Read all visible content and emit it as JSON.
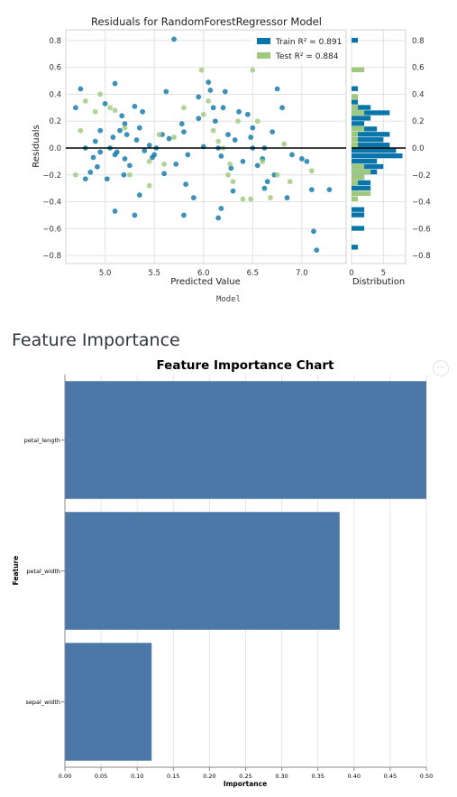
{
  "section_heading": "Feature Importance",
  "model_caption": "Model",
  "menu_icon_glyph": "···",
  "colors": {
    "train": "#0a75a8",
    "test": "#9ec97c",
    "bars": "#4c78a8"
  },
  "chart_data": [
    {
      "type": "scatter",
      "title": "Residuals for RandomForestRegressor Model",
      "xlabel": "Predicted Value",
      "ylabel": "Residuals",
      "xlim": [
        4.6,
        7.45
      ],
      "ylim": [
        -0.86,
        0.88
      ],
      "xticks": [
        "5.0",
        "5.5",
        "6.0",
        "6.5",
        "7.0"
      ],
      "xtick_values": [
        5.0,
        5.5,
        6.0,
        6.5,
        7.0
      ],
      "yticks": [
        "0.8",
        "0.6",
        "0.4",
        "0.2",
        "0.0",
        "−0.2",
        "−0.4",
        "−0.6",
        "−0.8"
      ],
      "ytick_values": [
        0.8,
        0.6,
        0.4,
        0.2,
        0.0,
        -0.2,
        -0.4,
        -0.6,
        -0.8
      ],
      "legend": {
        "placement": "top-right",
        "entries": [
          {
            "series": "Train",
            "label": "Train R² = 0.891"
          },
          {
            "series": "Test",
            "label": "Test R² = 0.884"
          }
        ]
      },
      "series": [
        {
          "name": "Train",
          "points": [
            [
              4.7,
              0.3
            ],
            [
              4.75,
              0.44
            ],
            [
              4.8,
              0.0
            ],
            [
              4.8,
              -0.23
            ],
            [
              4.85,
              -0.18
            ],
            [
              4.88,
              -0.07
            ],
            [
              4.9,
              0.05
            ],
            [
              4.92,
              -0.14
            ],
            [
              4.95,
              -0.03
            ],
            [
              5.0,
              0.33
            ],
            [
              5.02,
              -0.23
            ],
            [
              5.05,
              0.0
            ],
            [
              5.08,
              0.08
            ],
            [
              5.1,
              0.48
            ],
            [
              5.1,
              -0.05
            ],
            [
              5.12,
              -0.03
            ],
            [
              5.15,
              0.13
            ],
            [
              5.17,
              0.24
            ],
            [
              5.19,
              -0.2
            ],
            [
              5.2,
              0.18
            ],
            [
              5.22,
              0.1
            ],
            [
              5.25,
              -0.13
            ],
            [
              5.3,
              0.31
            ],
            [
              5.32,
              0.06
            ],
            [
              5.35,
              -0.35
            ],
            [
              5.38,
              0.27
            ],
            [
              5.4,
              -0.02
            ],
            [
              5.45,
              0.02
            ],
            [
              5.48,
              -0.07
            ],
            [
              5.5,
              -0.05
            ],
            [
              5.52,
              0.0
            ],
            [
              5.58,
              0.1
            ],
            [
              5.6,
              -0.19
            ],
            [
              5.62,
              0.42
            ],
            [
              5.65,
              0.07
            ],
            [
              5.7,
              0.81
            ],
            [
              5.72,
              -0.12
            ],
            [
              5.78,
              0.18
            ],
            [
              5.8,
              0.12
            ],
            [
              5.82,
              -0.27
            ],
            [
              5.84,
              -0.05
            ],
            [
              5.9,
              -0.37
            ],
            [
              5.95,
              0.38
            ],
            [
              6.0,
              0.01
            ],
            [
              6.05,
              0.49
            ],
            [
              6.07,
              0.43
            ],
            [
              6.1,
              0.3
            ],
            [
              6.12,
              0.2
            ],
            [
              6.15,
              0.0
            ],
            [
              6.18,
              -0.06
            ],
            [
              6.2,
              0.3
            ],
            [
              6.22,
              0.42
            ],
            [
              6.25,
              0.1
            ],
            [
              6.28,
              -0.15
            ],
            [
              6.3,
              -0.32
            ],
            [
              6.32,
              0.06
            ],
            [
              6.36,
              0.27
            ],
            [
              6.4,
              -0.1
            ],
            [
              6.45,
              0.25
            ],
            [
              6.48,
              0.08
            ],
            [
              6.5,
              0.0
            ],
            [
              6.55,
              -0.13
            ],
            [
              6.6,
              -0.08
            ],
            [
              6.62,
              -0.3
            ],
            [
              6.65,
              -0.25
            ],
            [
              6.7,
              0.12
            ],
            [
              6.72,
              -0.2
            ],
            [
              6.75,
              0.44
            ],
            [
              6.8,
              0.3
            ],
            [
              6.85,
              -0.37
            ],
            [
              6.9,
              -0.05
            ],
            [
              7.0,
              -0.08
            ],
            [
              7.05,
              -0.1
            ],
            [
              7.1,
              -0.31
            ],
            [
              7.12,
              -0.62
            ],
            [
              7.15,
              -0.76
            ],
            [
              7.28,
              -0.31
            ],
            [
              5.1,
              -0.47
            ],
            [
              5.3,
              -0.5
            ],
            [
              5.8,
              -0.5
            ],
            [
              6.15,
              -0.52
            ],
            [
              6.18,
              -0.45
            ],
            [
              5.2,
              -0.08
            ],
            [
              5.35,
              0.15
            ],
            [
              4.95,
              0.13
            ],
            [
              6.62,
              0.0
            ],
            [
              5.95,
              0.22
            ],
            [
              6.5,
              0.15
            ]
          ]
        },
        {
          "name": "Test",
          "points": [
            [
              4.75,
              0.13
            ],
            [
              4.8,
              0.35
            ],
            [
              4.9,
              0.27
            ],
            [
              4.95,
              0.4
            ],
            [
              5.05,
              0.3
            ],
            [
              5.1,
              0.28
            ],
            [
              5.2,
              0.15
            ],
            [
              5.25,
              -0.2
            ],
            [
              5.45,
              -0.28
            ],
            [
              5.6,
              -0.12
            ],
            [
              5.7,
              0.08
            ],
            [
              5.8,
              0.3
            ],
            [
              5.98,
              0.58
            ],
            [
              6.05,
              0.35
            ],
            [
              6.1,
              0.13
            ],
            [
              6.15,
              0.05
            ],
            [
              6.2,
              0.0
            ],
            [
              6.25,
              -0.2
            ],
            [
              6.3,
              -0.25
            ],
            [
              6.35,
              0.2
            ],
            [
              6.4,
              -0.38
            ],
            [
              6.48,
              -0.38
            ],
            [
              6.5,
              0.58
            ],
            [
              6.55,
              0.2
            ],
            [
              6.6,
              -0.1
            ],
            [
              6.68,
              -0.37
            ],
            [
              6.75,
              -0.2
            ],
            [
              6.82,
              0.03
            ],
            [
              6.88,
              -0.25
            ],
            [
              7.1,
              -0.17
            ],
            [
              4.7,
              -0.2
            ],
            [
              5.45,
              -0.1
            ],
            [
              6.27,
              -0.12
            ],
            [
              5.55,
              0.1
            ],
            [
              6.0,
              0.25
            ]
          ]
        }
      ],
      "distribution": {
        "xlabel": "Distribution",
        "xticks": [
          "0",
          "5"
        ],
        "xtick_values": [
          0,
          5
        ],
        "xlim": [
          0,
          8.5
        ],
        "bin_width": 0.04,
        "train_bins": [
          [
            0.78,
            1
          ],
          [
            0.42,
            1
          ],
          [
            0.32,
            1
          ],
          [
            0.28,
            3
          ],
          [
            0.24,
            6
          ],
          [
            0.2,
            3
          ],
          [
            0.16,
            2
          ],
          [
            0.12,
            4
          ],
          [
            0.08,
            6
          ],
          [
            0.04,
            5
          ],
          [
            0.0,
            6
          ],
          [
            -0.04,
            7
          ],
          [
            -0.08,
            8
          ],
          [
            -0.12,
            4
          ],
          [
            -0.16,
            5
          ],
          [
            -0.2,
            4
          ],
          [
            -0.24,
            2
          ],
          [
            -0.28,
            3
          ],
          [
            -0.32,
            3
          ],
          [
            -0.36,
            1
          ],
          [
            -0.48,
            2
          ],
          [
            -0.52,
            2
          ],
          [
            -0.62,
            2
          ],
          [
            -0.76,
            1
          ]
        ],
        "test_bins": [
          [
            0.56,
            2
          ],
          [
            0.36,
            1
          ],
          [
            0.28,
            1
          ],
          [
            0.24,
            2
          ],
          [
            0.12,
            2
          ],
          [
            0.08,
            1
          ],
          [
            0.04,
            1
          ],
          [
            0.0,
            1
          ],
          [
            -0.16,
            2
          ],
          [
            -0.2,
            3
          ],
          [
            -0.24,
            2
          ],
          [
            -0.28,
            1
          ],
          [
            -0.36,
            3
          ],
          [
            -0.4,
            1
          ]
        ]
      }
    },
    {
      "type": "bar",
      "orientation": "horizontal",
      "title": "Feature Importance Chart",
      "xlabel": "Importance",
      "ylabel": "Feature",
      "categories": [
        "petal_length",
        "petal_width",
        "sepal_width"
      ],
      "values": [
        0.5,
        0.38,
        0.12
      ],
      "xlim": [
        0,
        0.5
      ],
      "xticks": [
        "0.00",
        "0.05",
        "0.10",
        "0.15",
        "0.20",
        "0.25",
        "0.30",
        "0.35",
        "0.40",
        "0.45",
        "0.50"
      ],
      "xtick_values": [
        0,
        0.05,
        0.1,
        0.15,
        0.2,
        0.25,
        0.3,
        0.35,
        0.4,
        0.45,
        0.5
      ],
      "grid": true
    }
  ]
}
